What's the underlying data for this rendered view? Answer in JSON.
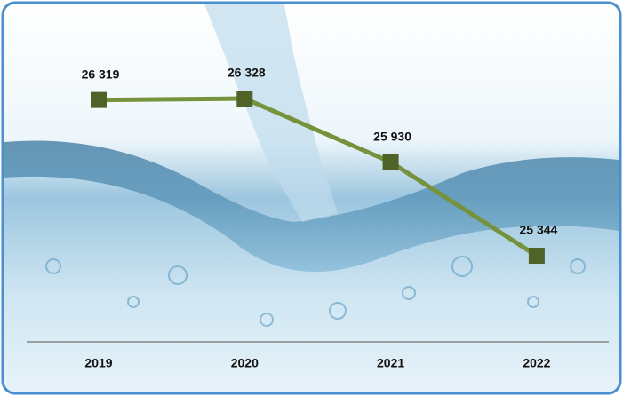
{
  "chart_data": {
    "type": "line",
    "categories": [
      "2019",
      "2020",
      "2021",
      "2022"
    ],
    "series": [
      {
        "color": "#76923c",
        "values": [
          26319,
          26328,
          25930,
          25344
        ],
        "value_labels": [
          "26 319",
          "26 328",
          "25 930",
          "25 344"
        ]
      }
    ]
  }
}
